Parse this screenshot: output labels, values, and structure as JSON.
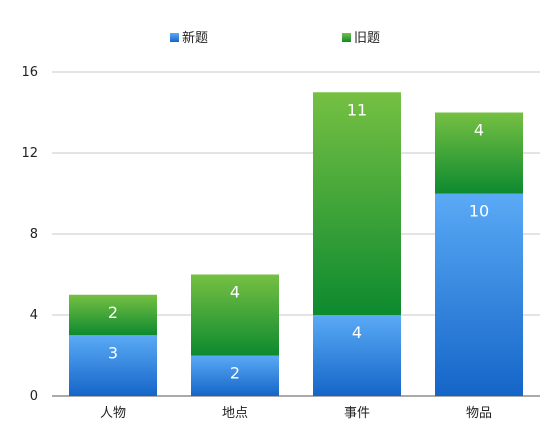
{
  "chart_data": {
    "type": "bar",
    "stacked": true,
    "categories": [
      "人物",
      "地点",
      "事件",
      "物品"
    ],
    "series": [
      {
        "name": "新题",
        "values": [
          3,
          2,
          4,
          10
        ],
        "color": "#3d8fe8",
        "color_light": "#5aaaf6",
        "color_dark": "#1565c8"
      },
      {
        "name": "旧题",
        "values": [
          2,
          4,
          11,
          4
        ],
        "color": "#43a83a",
        "color_light": "#76c043",
        "color_dark": "#0d8a2f"
      }
    ],
    "ylim": [
      0,
      16
    ],
    "yticks": [
      0,
      4,
      8,
      12,
      16
    ],
    "grid": true,
    "legend_position": "top"
  }
}
